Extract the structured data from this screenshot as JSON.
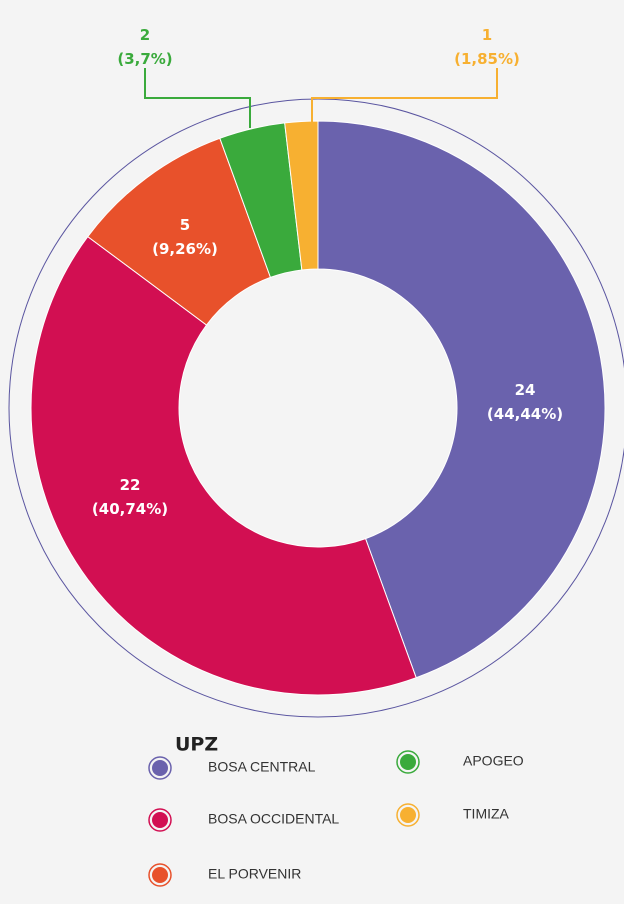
{
  "chart_data": {
    "type": "donut",
    "categories": [
      "BOSA  CENTRAL",
      "BOSA OCCIDENTAL",
      "EL PORVENIR",
      "APOGEO",
      "TIMIZA"
    ],
    "values": [
      24,
      22,
      5,
      2,
      1
    ],
    "value_labels": [
      "24 (44,44%)",
      "22 (40,74%)",
      "5 (9,26%)",
      "2 (3,7%)",
      "1 (1,85%)"
    ],
    "colors": [
      "#6a62ad",
      "#d20f52",
      "#e8512b",
      "#3aaa3c",
      "#f7b031"
    ],
    "legend_title": "UPZ"
  }
}
